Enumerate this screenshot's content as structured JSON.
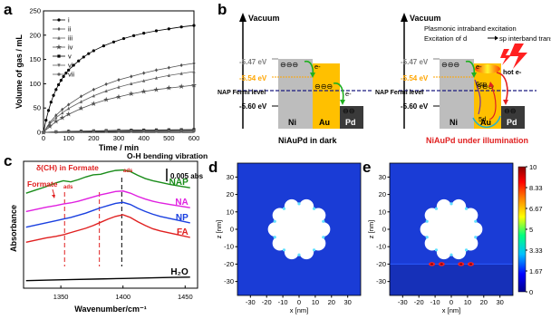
{
  "panels": {
    "a": "a",
    "b": "b",
    "c": "c",
    "d": "d",
    "e": "e"
  },
  "chart_data": [
    {
      "panel": "a",
      "type": "line",
      "xlabel": "Time / min",
      "ylabel": "Volume of gas / mL",
      "xlim": [
        0,
        600
      ],
      "ylim": [
        0,
        250
      ],
      "xticks": [
        0,
        100,
        200,
        300,
        400,
        500,
        600
      ],
      "yticks": [
        0,
        50,
        100,
        150,
        200,
        250
      ],
      "legend_position": "top-left",
      "series": [
        {
          "name": "i",
          "marker": "circle",
          "x": [
            0,
            10,
            20,
            30,
            40,
            50,
            60,
            70,
            80,
            90,
            100,
            120,
            140,
            160,
            180,
            200,
            240,
            280,
            320,
            360,
            400,
            450,
            500,
            550,
            600
          ],
          "values": [
            0,
            25,
            45,
            62,
            76,
            88,
            98,
            107,
            115,
            122,
            128,
            138,
            147,
            155,
            162,
            168,
            178,
            186,
            193,
            199,
            204,
            209,
            213,
            217,
            220
          ]
        },
        {
          "name": "ii",
          "marker": "diamond",
          "x": [
            0,
            25,
            50,
            75,
            100,
            150,
            200,
            250,
            300,
            350,
            400,
            450,
            500,
            550,
            600
          ],
          "values": [
            0,
            20,
            35,
            47,
            57,
            74,
            88,
            99,
            108,
            115,
            122,
            128,
            133,
            138,
            142
          ]
        },
        {
          "name": "iii",
          "marker": "triangle",
          "x": [
            0,
            25,
            50,
            75,
            100,
            150,
            200,
            250,
            300,
            350,
            400,
            450,
            500,
            550,
            600
          ],
          "values": [
            0,
            17,
            30,
            40,
            49,
            63,
            75,
            85,
            93,
            100,
            106,
            112,
            117,
            121,
            125
          ]
        },
        {
          "name": "iv",
          "marker": "star",
          "x": [
            0,
            25,
            50,
            75,
            100,
            150,
            200,
            250,
            300,
            350,
            400,
            450,
            500,
            550,
            600
          ],
          "values": [
            0,
            12,
            22,
            30,
            37,
            49,
            59,
            67,
            73,
            79,
            84,
            88,
            91,
            94,
            97
          ]
        },
        {
          "name": "v",
          "marker": "square",
          "x": [
            0,
            50,
            100,
            150,
            200,
            250,
            300,
            350,
            400,
            450,
            500,
            550,
            600
          ],
          "values": [
            0,
            1,
            2,
            2.5,
            3,
            3.5,
            4,
            4.3,
            4.6,
            4.9,
            5.1,
            5.3,
            5.5
          ]
        },
        {
          "name": "vi",
          "marker": "triangle-down",
          "x": [
            0,
            50,
            100,
            150,
            200,
            250,
            300,
            350,
            400,
            450,
            500,
            550,
            600
          ],
          "values": [
            0,
            1,
            1.5,
            2,
            2.3,
            2.6,
            2.9,
            3.1,
            3.3,
            3.5,
            3.6,
            3.7,
            3.8
          ]
        },
        {
          "name": "vii",
          "marker": "circle",
          "x": [
            0,
            50,
            100,
            150,
            200,
            250,
            300,
            350,
            400,
            450,
            500,
            550,
            600
          ],
          "values": [
            0,
            0.5,
            1,
            1.2,
            1.4,
            1.6,
            1.8,
            2,
            2.1,
            2.2,
            2.3,
            2.4,
            2.5
          ]
        }
      ]
    },
    {
      "panel": "c",
      "type": "line",
      "xlabel": "Wavenumber/cm⁻¹",
      "ylabel": "Absorbance",
      "xlim": [
        1320,
        1460
      ],
      "xticks": [
        1350,
        1400,
        1450
      ],
      "scale_bar": "0.005 abs",
      "annotations": [
        "δ(CH) in Formate",
        "ads",
        "Formate",
        "ads",
        "O-H bending vibration"
      ],
      "series": [
        {
          "name": "NAP",
          "color": "#1a8c1a",
          "x": [
            1322,
            1330,
            1338,
            1346,
            1352,
            1358,
            1364,
            1370,
            1376,
            1382,
            1388,
            1394,
            1400,
            1406,
            1412,
            1418,
            1424,
            1430,
            1438,
            1446,
            1454
          ],
          "values": [
            0.0352,
            0.0364,
            0.0376,
            0.039,
            0.0398,
            0.0394,
            0.0402,
            0.0412,
            0.042,
            0.0422,
            0.043,
            0.0436,
            0.0438,
            0.0432,
            0.0418,
            0.0406,
            0.0398,
            0.0392,
            0.0384,
            0.0378,
            0.0372
          ]
        },
        {
          "name": "NA",
          "color": "#e020e0",
          "x": [
            1322,
            1330,
            1338,
            1346,
            1352,
            1358,
            1364,
            1370,
            1376,
            1382,
            1388,
            1394,
            1400,
            1406,
            1412,
            1418,
            1424,
            1430,
            1438,
            1446,
            1454
          ],
          "values": [
            0.0284,
            0.0292,
            0.03,
            0.0306,
            0.0312,
            0.0316,
            0.0322,
            0.033,
            0.0338,
            0.0346,
            0.0352,
            0.0358,
            0.036,
            0.0352,
            0.034,
            0.033,
            0.0322,
            0.0316,
            0.031,
            0.0304,
            0.0298
          ]
        },
        {
          "name": "NP",
          "color": "#1a40e0",
          "x": [
            1322,
            1330,
            1338,
            1346,
            1352,
            1358,
            1364,
            1370,
            1376,
            1382,
            1388,
            1394,
            1400,
            1406,
            1412,
            1418,
            1424,
            1430,
            1438,
            1446,
            1454
          ],
          "values": [
            0.0226,
            0.0234,
            0.0242,
            0.025,
            0.0256,
            0.0262,
            0.027,
            0.0278,
            0.0288,
            0.0298,
            0.0306,
            0.0314,
            0.0318,
            0.031,
            0.0296,
            0.0284,
            0.0274,
            0.0266,
            0.0258,
            0.025,
            0.0242
          ]
        },
        {
          "name": "FA",
          "color": "#e02020",
          "x": [
            1322,
            1330,
            1338,
            1346,
            1352,
            1358,
            1364,
            1370,
            1376,
            1382,
            1388,
            1394,
            1400,
            1406,
            1412,
            1418,
            1424,
            1430,
            1438,
            1446,
            1454
          ],
          "values": [
            0.017,
            0.0178,
            0.0186,
            0.0192,
            0.0198,
            0.0206,
            0.0214,
            0.0222,
            0.0232,
            0.0244,
            0.0256,
            0.0266,
            0.0272,
            0.0262,
            0.0246,
            0.0232,
            0.022,
            0.0212,
            0.0204,
            0.0196,
            0.0188
          ]
        },
        {
          "name": "H₂O",
          "color": "#000000",
          "x": [
            1322,
            1340,
            1360,
            1380,
            1400,
            1420,
            1440,
            1454
          ],
          "values": [
            0.0028,
            0.003,
            0.0032,
            0.0034,
            0.0036,
            0.0038,
            0.004,
            0.0041
          ]
        }
      ],
      "reference_lines_x": [
        1353,
        1381,
        1399
      ]
    },
    {
      "panel": "d",
      "type": "heatmap",
      "xlabel": "x [nm]",
      "ylabel": "z [nm]",
      "xticks": [
        -30,
        -20,
        -10,
        0,
        10,
        20,
        30
      ],
      "yticks": [
        -30,
        -20,
        -10,
        0,
        10,
        20,
        30
      ],
      "xlim": [
        -38,
        38
      ],
      "ylim": [
        -38,
        38
      ]
    },
    {
      "panel": "e",
      "type": "heatmap",
      "xlabel": "x [nm]",
      "ylabel": "z [nm]",
      "xticks": [
        -30,
        -20,
        -10,
        0,
        10,
        20,
        30
      ],
      "yticks": [
        -30,
        -20,
        -10,
        0,
        10,
        20,
        30
      ],
      "xlim": [
        -38,
        38
      ],
      "ylim": [
        -38,
        38
      ],
      "colorbar": {
        "ticks": [
          "10",
          "8.33",
          "6.67",
          "5",
          "3.33",
          "1.67",
          "0"
        ],
        "colors": [
          "#00008b",
          "#0000ff",
          "#00bfff",
          "#00ff80",
          "#ffff00",
          "#ff8000",
          "#ff0000",
          "#8b0000"
        ]
      }
    }
  ],
  "diagram": {
    "vacuum_left": "Vacuum",
    "vacuum_right": "Vacuum",
    "levels": {
      "ni": "-5.47 eV",
      "au": "-5.54 eV",
      "pd": "-5.60 eV"
    },
    "fermi_label": "NAP Fermi level",
    "metals": {
      "ni": "Ni",
      "au": "Au",
      "pd": "Pd"
    },
    "electron": "e-",
    "hot_electron": "hot e-",
    "ee": "⊖⊖⊖",
    "ee_small": "⊖⊖",
    "ee_red": "⊖⊖",
    "sp_label": "6sp",
    "d_label": "5d",
    "caption_dark": "NiAuPd in dark",
    "caption_light": "NiAuPd under illumination",
    "note_1": "Plasmonic intraband excitation",
    "note_2": "Excitation of d",
    "note_2b": "sp interband transition"
  }
}
